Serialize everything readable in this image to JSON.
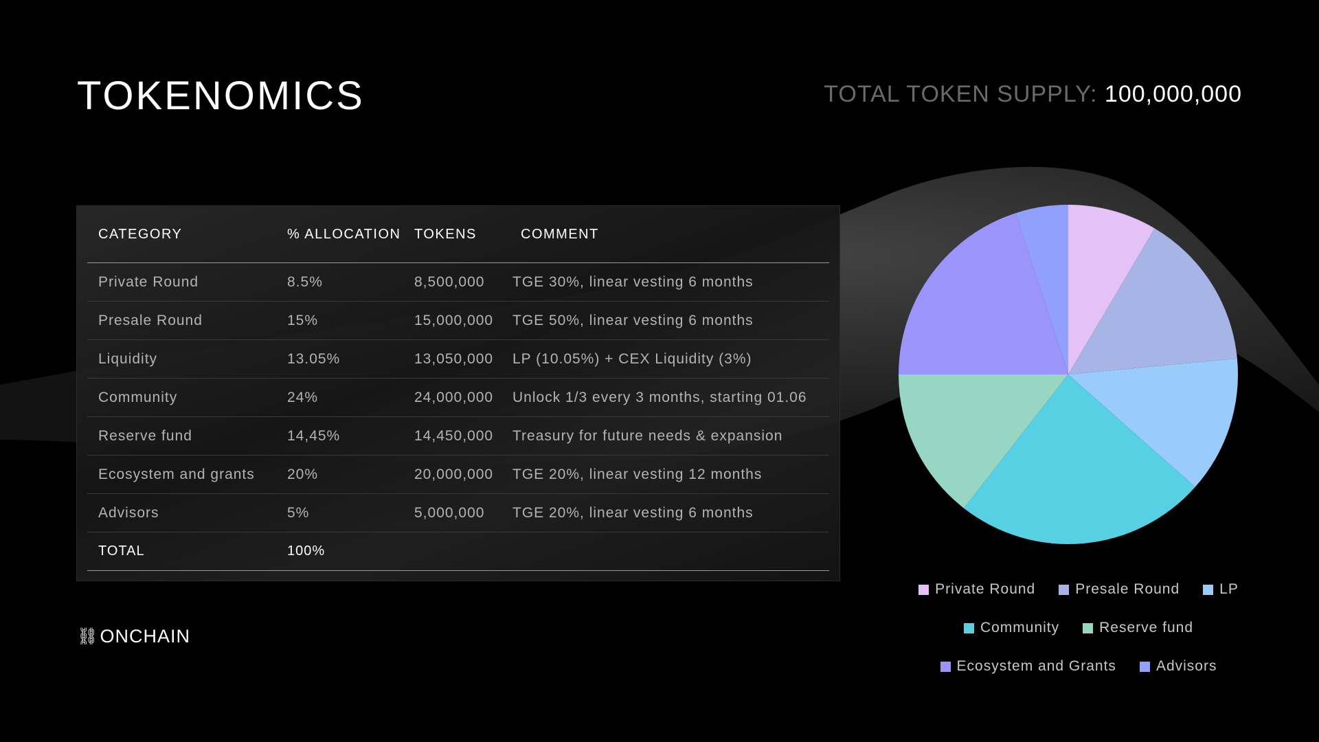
{
  "header": {
    "title": "TOKENOMICS",
    "supply_label": "TOTAL TOKEN SUPPLY:",
    "supply_value": "100,000,000"
  },
  "table": {
    "headers": [
      "CATEGORY",
      "% ALLOCATION",
      "TOKENS",
      "COMMENT"
    ],
    "rows": [
      {
        "category": "Private Round",
        "allocation": "8.5%",
        "tokens": "8,500,000",
        "comment": "TGE 30%, linear vesting 6 months"
      },
      {
        "category": "Presale Round",
        "allocation": "15%",
        "tokens": "15,000,000",
        "comment": "TGE 50%, linear vesting 6 months"
      },
      {
        "category": "Liquidity",
        "allocation": "13.05%",
        "tokens": "13,050,000",
        "comment": "LP (10.05%) + CEX Liquidity (3%)"
      },
      {
        "category": "Community",
        "allocation": "24%",
        "tokens": "24,000,000",
        "comment": "Unlock 1/3 every 3 months, starting 01.06"
      },
      {
        "category": "Reserve fund",
        "allocation": "14,45%",
        "tokens": "14,450,000",
        "comment": "Treasury for future needs & expansion"
      },
      {
        "category": "Ecosystem and grants",
        "allocation": "20%",
        "tokens": "20,000,000",
        "comment": "TGE 20%, linear vesting 12 months"
      },
      {
        "category": "Advisors",
        "allocation": "5%",
        "tokens": "5,000,000",
        "comment": "TGE 20%, linear vesting 6 months"
      }
    ],
    "total": {
      "label": "TOTAL",
      "allocation": "100%"
    }
  },
  "logo": {
    "icon": "chain-link-icon",
    "glyph": "⛓",
    "text": "ONCHAIN"
  },
  "chart_data": {
    "type": "pie",
    "start_angle_deg": 0,
    "direction": "clockwise",
    "slices": [
      {
        "label": "Private Round",
        "value": 8.5,
        "color": "#E4C1F6"
      },
      {
        "label": "Presale Round",
        "value": 15,
        "color": "#A6B4E6"
      },
      {
        "label": "LP",
        "value": 13.05,
        "color": "#99CCFA"
      },
      {
        "label": "Community",
        "value": 24,
        "color": "#57D0E4"
      },
      {
        "label": "Reserve fund",
        "value": 14.45,
        "color": "#96D6C2"
      },
      {
        "label": "Ecosystem and Grants",
        "value": 20,
        "color": "#9B94FB"
      },
      {
        "label": "Advisors",
        "value": 5,
        "color": "#939FFD"
      }
    ],
    "legend_rows": [
      [
        0,
        1,
        2
      ],
      [
        3,
        4
      ],
      [
        5,
        6
      ]
    ],
    "legend_position": "bottom"
  }
}
